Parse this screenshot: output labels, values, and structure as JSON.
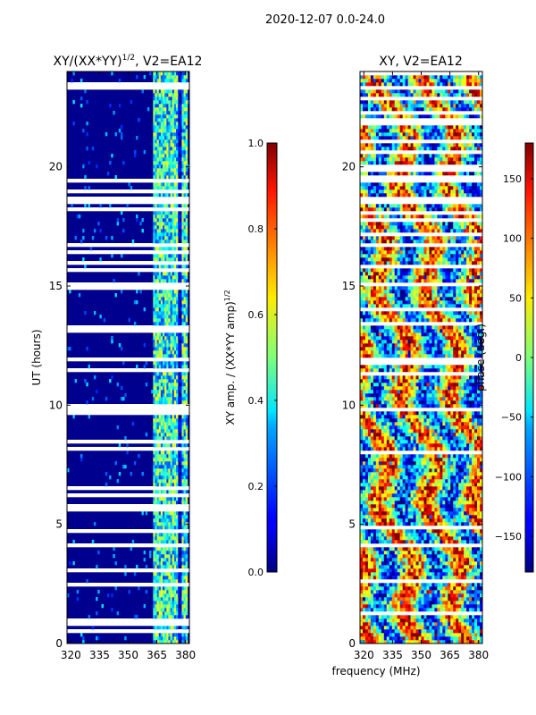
{
  "figure": {
    "suptitle": "2020-12-07 0.0-24.0",
    "xlabel_shared": "frequency (MHz)"
  },
  "chart_data": [
    {
      "type": "heatmap",
      "title_main": "XY/(XX*YY)",
      "title_sup": "1/2",
      "title_tail": ", V2=EA12",
      "xlabel": "",
      "ylabel": "UT (hours)",
      "xlim": [
        318,
        382
      ],
      "ylim": [
        0,
        24
      ],
      "xticks": [
        320,
        335,
        350,
        365,
        380
      ],
      "yticks": [
        0,
        5,
        10,
        15,
        20
      ],
      "colormap": "jet",
      "clim": [
        0.0,
        1.0
      ],
      "colorbar": {
        "label_main": "XY amp. / (XX*YY amp)",
        "label_sup": "1/2",
        "ticks": [
          "0.0",
          "0.2",
          "0.4",
          "0.6",
          "0.8",
          "1.0"
        ],
        "tick_values": [
          0.0,
          0.2,
          0.4,
          0.6,
          0.8,
          1.0
        ]
      },
      "description_values": "mostly near 0 (dark blue) from 320-362 MHz; 0.2-0.6 in channels ~363-380 MHz",
      "flagged_ut_ranges_hours": [
        [
          9.6,
          10.1
        ],
        [
          11.8,
          12.0
        ],
        [
          13.0,
          13.4
        ],
        [
          15.0,
          15.1
        ],
        [
          16.6,
          16.8
        ],
        [
          18.6,
          18.8
        ],
        [
          5.6,
          5.8
        ]
      ]
    },
    {
      "type": "heatmap",
      "title_main": "XY, V2=EA12",
      "xlabel": "",
      "ylabel": "",
      "xlim": [
        318,
        382
      ],
      "ylim": [
        0,
        24
      ],
      "xticks": [
        320,
        335,
        350,
        365,
        380
      ],
      "yticks": [
        0,
        5,
        10,
        15,
        20
      ],
      "colormap": "jet",
      "clim": [
        -180,
        180
      ],
      "colorbar": {
        "label_main": "phase (deg.)",
        "ticks": [
          "150",
          "100",
          "50",
          "0",
          "−50",
          "−100",
          "−150"
        ],
        "tick_values": [
          150,
          100,
          50,
          0,
          -50,
          -100,
          -150
        ]
      },
      "description_values": "phase varies broadly across -180 to 180 deg (noisy)",
      "flagged_ut_ranges_hours": [
        [
          15.0,
          15.1
        ],
        [
          16.6,
          16.8
        ],
        [
          18.6,
          18.8
        ],
        [
          11.8,
          12.0
        ]
      ]
    }
  ]
}
